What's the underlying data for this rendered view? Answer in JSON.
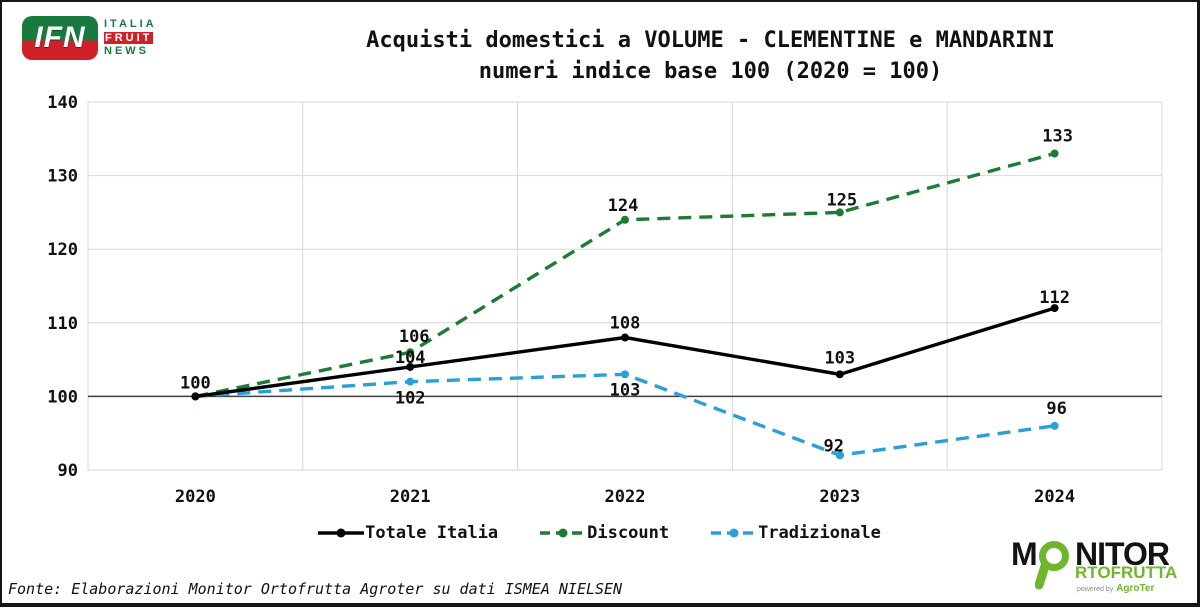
{
  "logo_ifn": {
    "badge": "IFN",
    "word1": "ITALIA",
    "word2": "FRUIT",
    "word3": "NEWS"
  },
  "chart_data": {
    "type": "line",
    "title": "Acquisti domestici a VOLUME - CLEMENTINE e MANDARINI",
    "subtitle": "numeri indice base 100 (2020 = 100)",
    "categories": [
      "2020",
      "2021",
      "2022",
      "2023",
      "2024"
    ],
    "ylim": [
      90,
      140
    ],
    "yticks": [
      90,
      100,
      110,
      120,
      130,
      140
    ],
    "baseline_value": 100,
    "grid": true,
    "legend_position": "bottom",
    "colors": {
      "grid": "#d8d8d8",
      "baseline": "#3f3f3f",
      "label": "#111111"
    },
    "series": [
      {
        "name": "Totale Italia",
        "color": "#000000",
        "style": "solid",
        "values": [
          100,
          104,
          108,
          103,
          112
        ],
        "labels": [
          {
            "text": "100",
            "dx": 0,
            "dy": -8
          },
          {
            "text": "104",
            "dx": 0,
            "dy": -4
          },
          {
            "text": "108",
            "dx": 0,
            "dy": -9
          },
          {
            "text": "103",
            "dx": 0,
            "dy": -11
          },
          {
            "text": "112",
            "dx": 0,
            "dy": -5
          }
        ]
      },
      {
        "name": "Discount",
        "color": "#1e7b34",
        "style": "dashed",
        "values": [
          100,
          106,
          124,
          125,
          133
        ],
        "labels": [
          null,
          {
            "text": "106",
            "dx": 4,
            "dy": -10
          },
          {
            "text": "124",
            "dx": -2,
            "dy": -9
          },
          {
            "text": "125",
            "dx": 2,
            "dy": -7
          },
          {
            "text": "133",
            "dx": 3,
            "dy": -12
          }
        ]
      },
      {
        "name": "Tradizionale",
        "color": "#29a0d8",
        "style": "dashed",
        "values": [
          100,
          102,
          103,
          92,
          96
        ],
        "labels": [
          null,
          {
            "text": "102",
            "dx": 0,
            "dy": 22
          },
          {
            "text": "103",
            "dx": 0,
            "dy": 21
          },
          {
            "text": "92",
            "dx": -6,
            "dy": -4
          },
          {
            "text": "96",
            "dx": 2,
            "dy": -12
          }
        ]
      }
    ]
  },
  "footer": {
    "source": "Fonte: Elaborazioni Monitor Ortofrutta Agroter su dati ISMEA NIELSEN"
  },
  "logo_monitor": {
    "m": "M",
    "nitor": "NITOR",
    "rtofrutta": "RTOFRUTTA",
    "powered": "powered by",
    "agroter": "AgroTer",
    "green": "#6fb62c"
  }
}
